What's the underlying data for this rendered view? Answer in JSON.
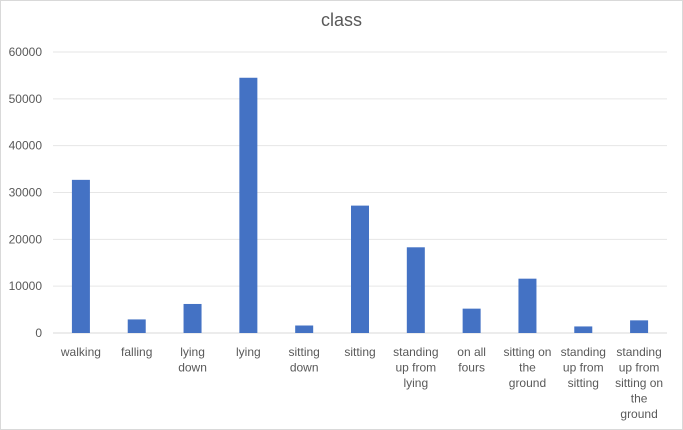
{
  "chart_data": {
    "type": "bar",
    "title": "class",
    "xlabel": "",
    "ylabel": "",
    "ylim": [
      0,
      60000
    ],
    "yticks": [
      0,
      10000,
      20000,
      30000,
      40000,
      50000,
      60000
    ],
    "grid": true,
    "legend": "none",
    "bar_color": "#4472c4",
    "categories": [
      "walking",
      "falling",
      "lying down",
      "lying",
      "sitting down",
      "sitting",
      "standing up from lying",
      "on all fours",
      "sitting on the ground",
      "standing up from sitting",
      "standing up from sitting on the ground"
    ],
    "category_lines": [
      [
        "walking"
      ],
      [
        "falling"
      ],
      [
        "lying",
        "down"
      ],
      [
        "lying"
      ],
      [
        "sitting",
        "down"
      ],
      [
        "sitting"
      ],
      [
        "standing",
        "up from",
        "lying"
      ],
      [
        "on all",
        "fours"
      ],
      [
        "sitting on",
        "the",
        "ground"
      ],
      [
        "standing",
        "up from",
        "sitting"
      ],
      [
        "standing",
        "up from",
        "sitting on",
        "the",
        "ground"
      ]
    ],
    "values": [
      32700,
      2900,
      6200,
      54500,
      1600,
      27200,
      18300,
      5200,
      11600,
      1400,
      2700
    ]
  }
}
